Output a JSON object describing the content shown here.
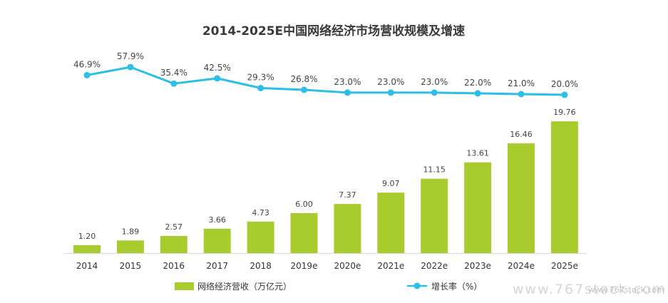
{
  "chart_data": {
    "type": "bar",
    "title": "2014-2025E中国网络经济市场营收规模及增速",
    "categories": [
      "2014",
      "2015",
      "2016",
      "2017",
      "2018",
      "2019e",
      "2020e",
      "2021e",
      "2022e",
      "2023e",
      "2024e",
      "2025e"
    ],
    "series": [
      {
        "name": "网络经济营收（万亿元）",
        "type": "bar",
        "values": [
          1.2,
          1.89,
          2.57,
          3.66,
          4.73,
          6.0,
          7.37,
          9.07,
          11.15,
          13.61,
          16.46,
          19.76
        ],
        "labels": [
          "1.20",
          "1.89",
          "2.57",
          "3.66",
          "4.73",
          "6.00",
          "7.37",
          "9.07",
          "11.15",
          "13.61",
          "16.46",
          "19.76"
        ]
      },
      {
        "name": "增长率（%）",
        "type": "line",
        "values": [
          46.9,
          57.9,
          35.4,
          42.5,
          29.3,
          26.8,
          23.0,
          23.0,
          23.0,
          22.0,
          21.0,
          20.0
        ],
        "labels": [
          "46.9%",
          "57.9%",
          "35.4%",
          "42.5%",
          "29.3%",
          "26.8%",
          "23.0%",
          "23.0%",
          "23.0%",
          "22.0%",
          "21.0%",
          "20.0%"
        ]
      }
    ],
    "bar_ylim": [
      0,
      20
    ],
    "line_ylim": [
      20,
      58
    ],
    "grid": false,
    "legend_position": "bottom",
    "colors": {
      "bar": "#a8cc2e",
      "line": "#2bbfe8"
    }
  },
  "watermark": {
    "main": "www.767stock.com",
    "small": "www.767stock.com"
  }
}
